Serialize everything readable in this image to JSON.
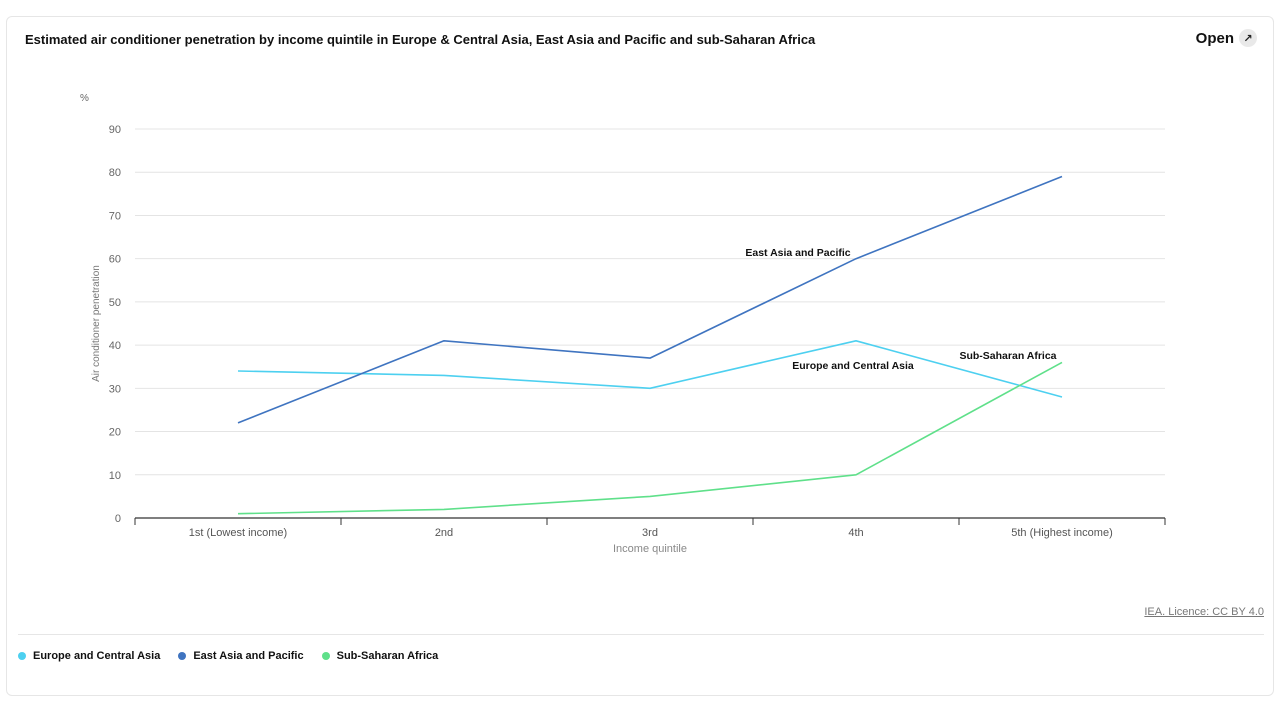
{
  "header": {
    "title": "Estimated air conditioner penetration by income quintile in Europe & Central Asia, East Asia and Pacific and sub-Saharan Africa",
    "open_label": "Open",
    "open_icon": "expand-arrow-icon"
  },
  "footer": {
    "licence": "IEA. Licence: CC BY 4.0"
  },
  "legend": [
    {
      "label": "Europe and Central Asia",
      "color": "#4dd0f0"
    },
    {
      "label": "East Asia and Pacific",
      "color": "#3f74c0"
    },
    {
      "label": "Sub-Saharan Africa",
      "color": "#5fe08a"
    }
  ],
  "chart_data": {
    "type": "line",
    "title": "Estimated air conditioner penetration by income quintile in Europe & Central Asia, East Asia and Pacific and sub-Saharan Africa",
    "unit": "%",
    "xlabel": "Income quintile",
    "ylabel": "Air conditioner penetration",
    "categories": [
      "1st (Lowest income)",
      "2nd",
      "3rd",
      "4th",
      "5th (Highest income)"
    ],
    "ylim": [
      0,
      90
    ],
    "yticks": [
      0,
      10,
      20,
      30,
      40,
      50,
      60,
      70,
      80,
      90
    ],
    "grid": true,
    "legend_position": "bottom-left",
    "series": [
      {
        "name": "Europe and Central Asia",
        "color": "#4dd0f0",
        "values": [
          34,
          33,
          30,
          41,
          28
        ]
      },
      {
        "name": "East Asia and Pacific",
        "color": "#3f74c0",
        "values": [
          22,
          41,
          37,
          60,
          79
        ]
      },
      {
        "name": "Sub-Saharan Africa",
        "color": "#5fe08a",
        "values": [
          1,
          2,
          5,
          10,
          36
        ]
      }
    ],
    "annotations": [
      {
        "text": "East Asia and Pacific",
        "series": "East Asia and Pacific"
      },
      {
        "text": "Europe and Central Asia",
        "series": "Europe and Central Asia"
      },
      {
        "text": "Sub-Saharan Africa",
        "series": "Sub-Saharan Africa"
      }
    ]
  }
}
